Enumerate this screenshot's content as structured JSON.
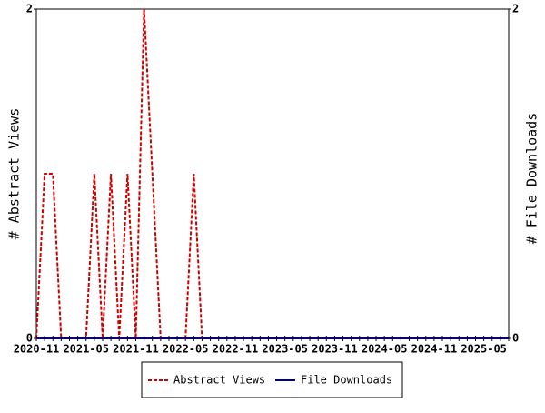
{
  "chart_data": {
    "type": "line",
    "categories": [
      "2020-11",
      null,
      null,
      null,
      null,
      null,
      "2021-05",
      null,
      null,
      null,
      null,
      null,
      "2021-11",
      null,
      null,
      null,
      null,
      null,
      "2022-05",
      null,
      null,
      null,
      null,
      null,
      "2022-11",
      null,
      null,
      null,
      null,
      null,
      "2023-05",
      null,
      null,
      null,
      null,
      null,
      "2023-11",
      null,
      null,
      null,
      null,
      null,
      "2024-05",
      null,
      null,
      null,
      null,
      null,
      "2024-11",
      null,
      null,
      null,
      null,
      null,
      "2025-05",
      null,
      null,
      null
    ],
    "series": [
      {
        "name": "Abstract Views",
        "color": "#cc0000",
        "dashed": true,
        "values": [
          0,
          1,
          1,
          0,
          0,
          0,
          0,
          1,
          0,
          1,
          0,
          1,
          0,
          2,
          1,
          0,
          0,
          0,
          0,
          1,
          0,
          0,
          0,
          0,
          0,
          0,
          0,
          0,
          0,
          0,
          0,
          0,
          0,
          0,
          0,
          0,
          0,
          0,
          0,
          0,
          0,
          0,
          0,
          0,
          0,
          0,
          0,
          0,
          0,
          0,
          0,
          0,
          0,
          0,
          0,
          0,
          0,
          0
        ]
      },
      {
        "name": "File Downloads",
        "color": "#000099",
        "axis": "y2",
        "dashed": false,
        "values": [
          0,
          0,
          0,
          0,
          0,
          0,
          0,
          0,
          0,
          0,
          0,
          0,
          0,
          0,
          0,
          0,
          0,
          0,
          0,
          0,
          0,
          0,
          0,
          0,
          0,
          0,
          0,
          0,
          0,
          0,
          0,
          0,
          0,
          0,
          0,
          0,
          0,
          0,
          0,
          0,
          0,
          0,
          0,
          0,
          0,
          0,
          0,
          0,
          0,
          0,
          0,
          0,
          0,
          0,
          0,
          0,
          0,
          0
        ]
      }
    ],
    "ylabel": "# Abstract Views",
    "y2label": "# File Downloads",
    "ylim": [
      0,
      2
    ],
    "yticks": [
      0,
      2
    ],
    "y2lim": [
      0,
      2
    ],
    "y2ticks": [
      0,
      2
    ],
    "legend": "bottom"
  }
}
